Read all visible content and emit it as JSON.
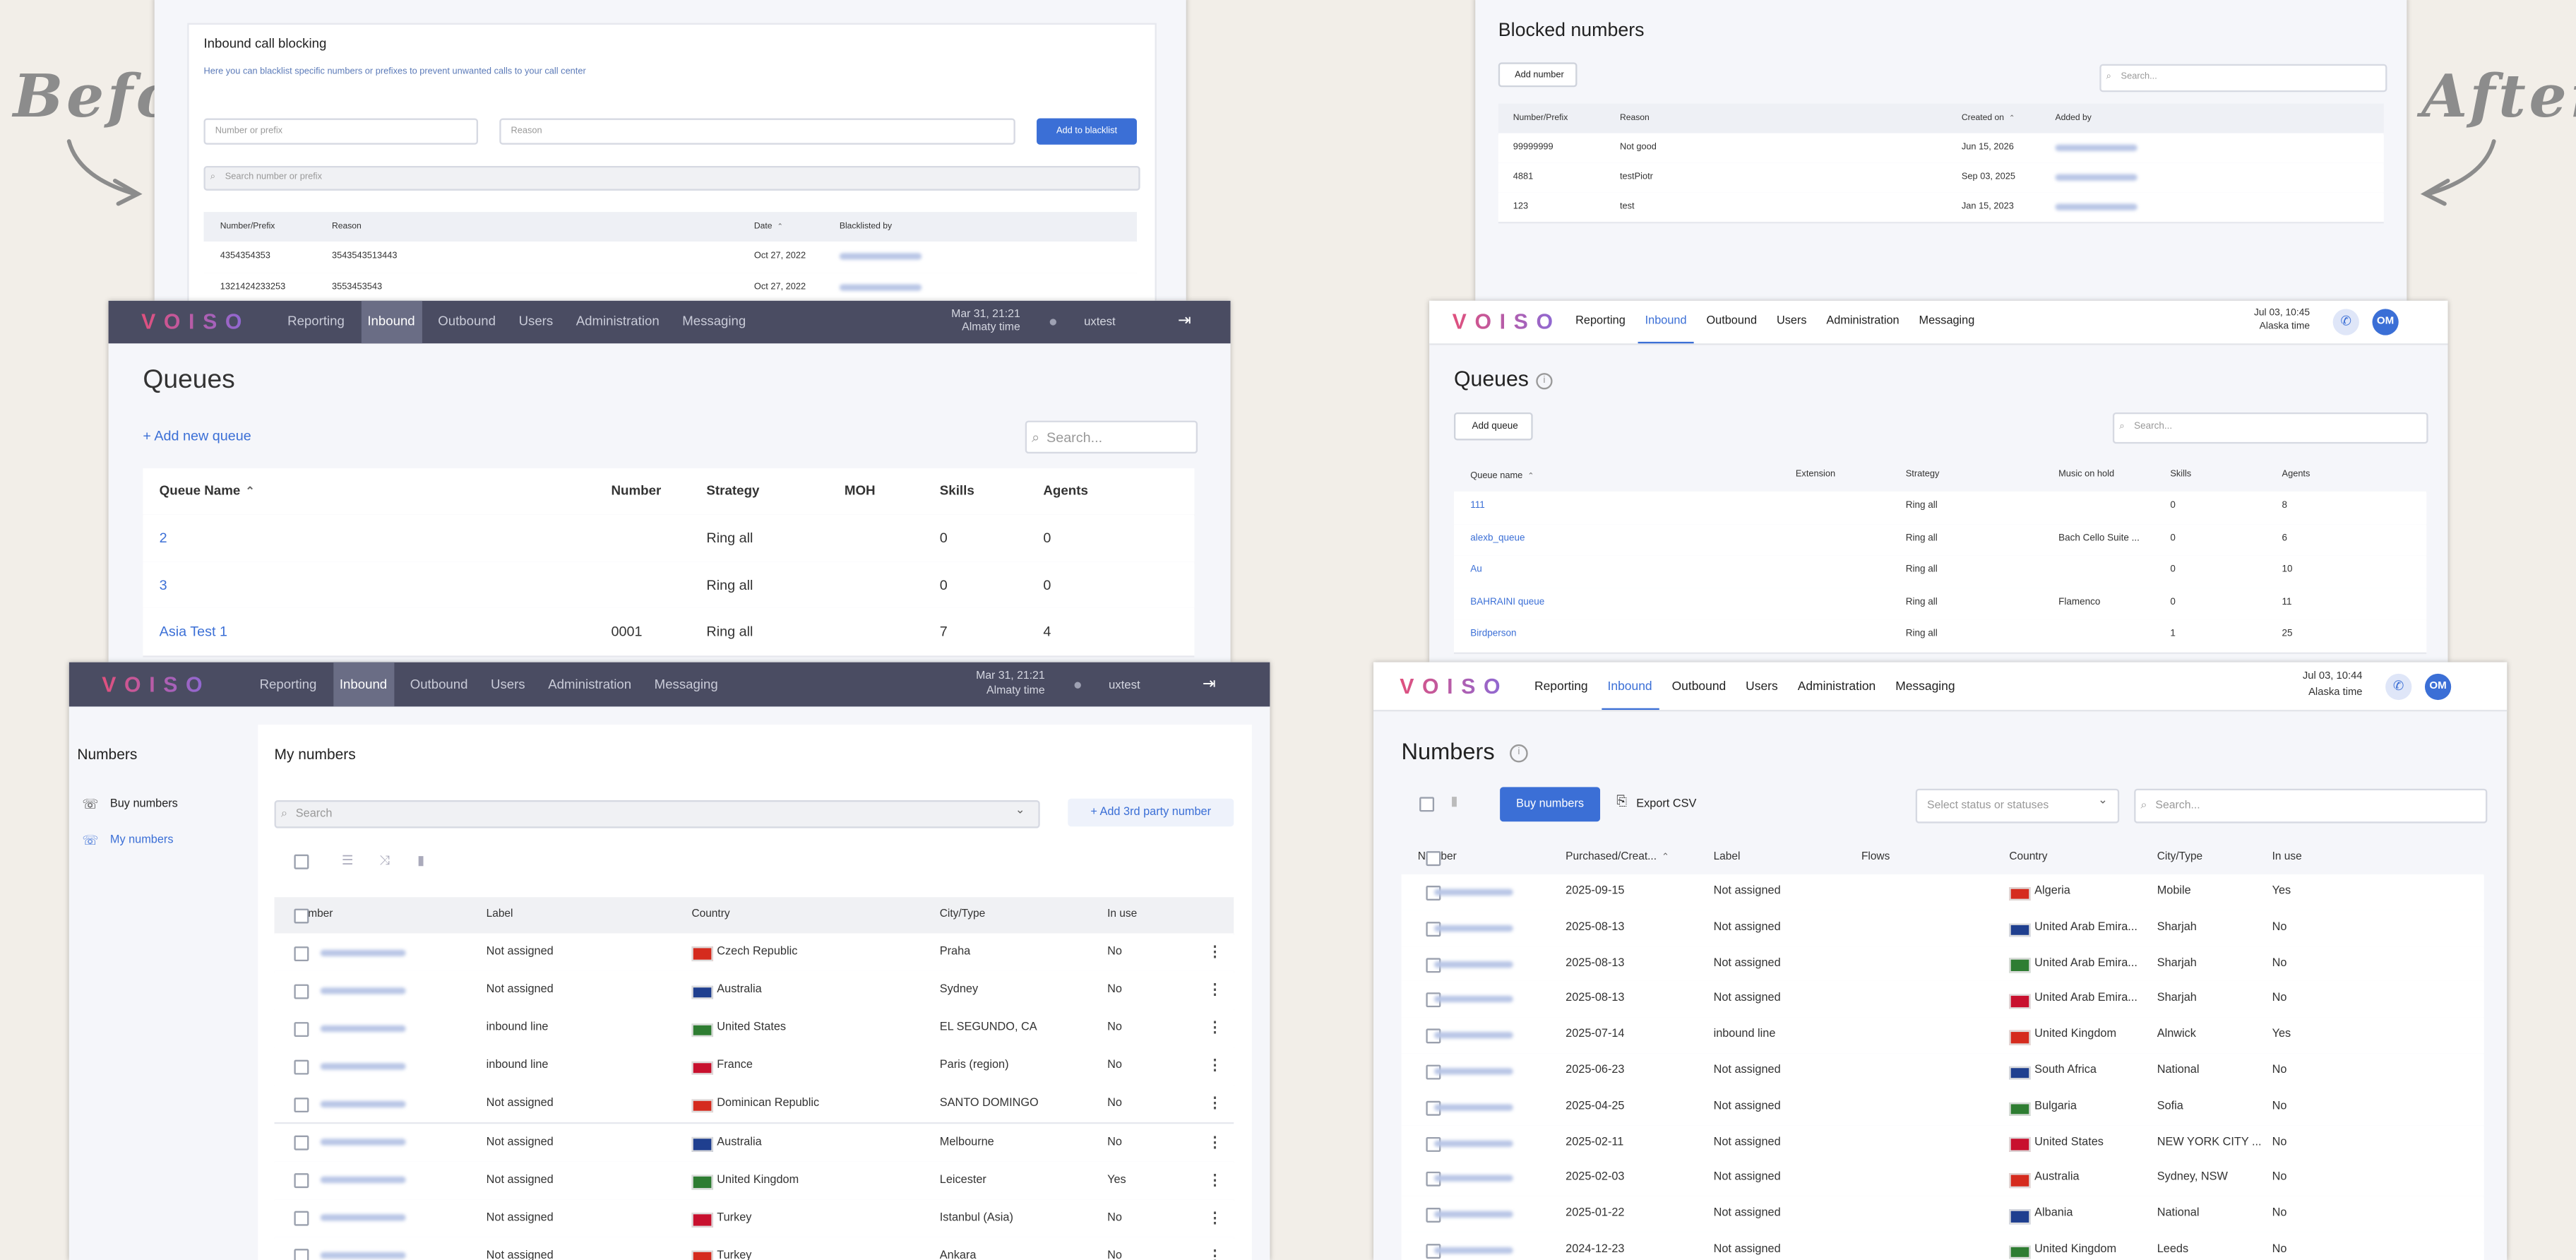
{
  "labels": {
    "before": "Before",
    "after": "After"
  },
  "before_blacklist": {
    "title": "Inbound call blocking",
    "description": "Here you can blacklist specific numbers or prefixes to prevent unwanted calls to your call center",
    "number_placeholder": "Number or prefix",
    "reason_placeholder": "Reason",
    "button": "Add to blacklist",
    "search": "Search number or prefix",
    "columns": [
      "Number/Prefix",
      "Reason",
      "Date",
      "Blacklisted by"
    ],
    "rows": [
      [
        "4354354353",
        "3543543513443",
        "Oct 27, 2022"
      ],
      [
        "1321424233253",
        "3553453543",
        "Oct 27, 2022"
      ]
    ]
  },
  "after_blocked": {
    "title": "Blocked numbers",
    "button": "Add number",
    "search": "Search...",
    "columns": [
      "Number/Prefix",
      "Reason",
      "Created on",
      "Added by"
    ],
    "rows": [
      [
        "99999999",
        "Not good",
        "Jun 15, 2026"
      ],
      [
        "4881",
        "testPiotr",
        "Sep 03, 2025"
      ],
      [
        "123",
        "test",
        "Jan 15, 2023"
      ]
    ]
  },
  "before_queues": {
    "nav": {
      "logo": "VOISO",
      "items": [
        "Reporting",
        "Inbound",
        "Outbound",
        "Users",
        "Administration",
        "Messaging"
      ],
      "date": "Mar 31, 21:21",
      "timezone": "Almaty time",
      "user": "uxtest"
    },
    "title": "Queues",
    "add": "+ Add new queue",
    "search": "Search...",
    "columns": [
      "Queue Name",
      "Number",
      "Strategy",
      "MOH",
      "Skills",
      "Agents"
    ],
    "rows": [
      [
        "2",
        null,
        "Ring all",
        null,
        0,
        0
      ],
      [
        "3",
        null,
        "Ring all",
        null,
        0,
        0
      ],
      [
        "Asia Test 1",
        "0001",
        "Ring all",
        null,
        7,
        4
      ]
    ]
  },
  "after_queues": {
    "nav": {
      "logo": "VOISO",
      "items": [
        "Reporting",
        "Inbound",
        "Outbound",
        "Users",
        "Administration",
        "Messaging"
      ],
      "date": "Jul 03, 10:45",
      "timezone": "Alaska time",
      "avatar": "OM"
    },
    "title": "Queues",
    "button": "Add queue",
    "search": "Search...",
    "columns": [
      "Queue name",
      "Extension",
      "Strategy",
      "Music on hold",
      "Skills",
      "Agents"
    ],
    "rows": [
      [
        "111",
        null,
        "Ring all",
        null,
        0,
        8
      ],
      [
        "alexb_queue",
        null,
        "Ring all",
        "Bach Cello Suite ...",
        0,
        6
      ],
      [
        "Au",
        null,
        "Ring all",
        null,
        0,
        10
      ],
      [
        "BAHRAINI queue",
        null,
        "Ring all",
        "Flamenco",
        0,
        11
      ],
      [
        "Birdperson",
        null,
        "Ring all",
        null,
        1,
        25
      ]
    ]
  },
  "before_numbers": {
    "nav": {
      "logo": "VOISO",
      "items": [
        "Reporting",
        "Inbound",
        "Outbound",
        "Users",
        "Administration",
        "Messaging"
      ],
      "date": "Mar 31, 21:21",
      "timezone": "Almaty time",
      "user": "uxtest"
    },
    "sidebar": {
      "title": "Numbers",
      "links": [
        "Buy numbers",
        "My numbers"
      ]
    },
    "title": "My numbers",
    "search": "Search",
    "add": "+ Add 3rd party number",
    "columns": [
      "Number",
      "Label",
      "Country",
      "City/Type",
      "In use"
    ],
    "rows": [
      [
        "Not assigned",
        "Czech Republic",
        "Praha",
        "No"
      ],
      [
        "Not assigned",
        "Australia",
        "Sydney",
        "No"
      ],
      [
        "inbound line",
        "United States",
        "EL SEGUNDO, CA",
        "No"
      ],
      [
        "inbound line",
        "France",
        "Paris (region)",
        "No"
      ],
      [
        "Not assigned",
        "Dominican Republic",
        "SANTO DOMINGO",
        "No"
      ],
      [
        "Not assigned",
        "Australia",
        "Melbourne",
        "No"
      ],
      [
        "Not assigned",
        "United Kingdom",
        "Leicester",
        "Yes"
      ],
      [
        "Not assigned",
        "Turkey",
        "Istanbul (Asia)",
        "No"
      ],
      [
        "Not assigned",
        "Turkey",
        "Ankara",
        "No"
      ]
    ]
  },
  "after_numbers": {
    "nav": {
      "logo": "VOISO",
      "items": [
        "Reporting",
        "Inbound",
        "Outbound",
        "Users",
        "Administration",
        "Messaging"
      ],
      "date": "Jul 03, 10:44",
      "timezone": "Alaska time",
      "avatar": "OM"
    },
    "title": "Numbers",
    "button": "Buy numbers",
    "export": "Export CSV",
    "status_select": "Select status or statuses",
    "search": "Search...",
    "columns": [
      "Number",
      "Purchased/Creat...",
      "Label",
      "Flows",
      "Country",
      "City/Type",
      "In use"
    ],
    "rows": [
      [
        "2025-09-15",
        "Not assigned",
        "Algeria",
        "Mobile",
        "Yes"
      ],
      [
        "2025-08-13",
        "Not assigned",
        "United Arab Emira...",
        "Sharjah",
        "No"
      ],
      [
        "2025-08-13",
        "Not assigned",
        "United Arab Emira...",
        "Sharjah",
        "No"
      ],
      [
        "2025-08-13",
        "Not assigned",
        "United Arab Emira...",
        "Sharjah",
        "No"
      ],
      [
        "2025-07-14",
        "inbound line",
        "United Kingdom",
        "Alnwick",
        "Yes"
      ],
      [
        "2025-06-23",
        "Not assigned",
        "South Africa",
        "National",
        "No"
      ],
      [
        "2025-04-25",
        "Not assigned",
        "Bulgaria",
        "Sofia",
        "No"
      ],
      [
        "2025-02-11",
        "Not assigned",
        "United States",
        "NEW YORK CITY ...",
        "No"
      ],
      [
        "2025-02-03",
        "Not assigned",
        "Australia",
        "Sydney, NSW",
        "No"
      ],
      [
        "2025-01-22",
        "Not assigned",
        "Albania",
        "National",
        "No"
      ],
      [
        "2024-12-23",
        "Not assigned",
        "United Kingdom",
        "Leeds",
        "No"
      ]
    ]
  }
}
